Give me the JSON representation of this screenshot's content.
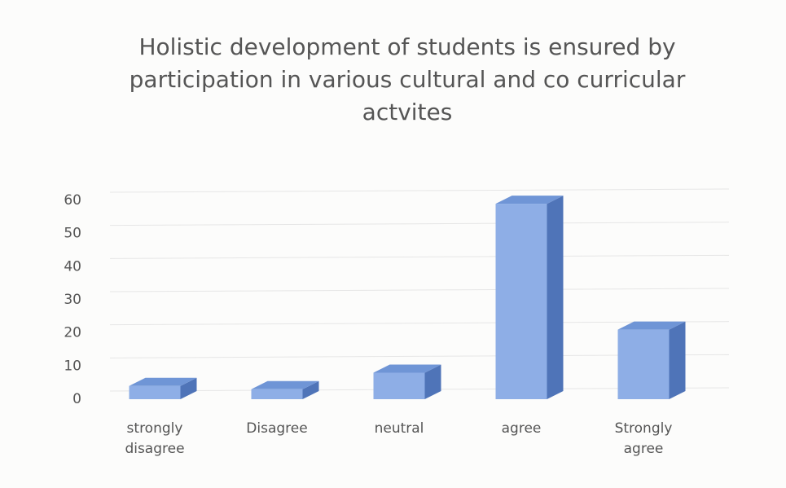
{
  "chart_data": {
    "type": "bar3d",
    "title": "Holistic development of students is ensured by participation in various cultural and co curricular actvites",
    "categories": [
      "strongly disagree",
      "Disagree",
      "neutral",
      "agree",
      "Strongly agree"
    ],
    "values": [
      4,
      3,
      8,
      59,
      21
    ],
    "color": "#8eaee6",
    "ylim": [
      0,
      60
    ],
    "yticks": [
      0,
      10,
      20,
      30,
      40,
      50,
      60
    ],
    "grid": true
  }
}
